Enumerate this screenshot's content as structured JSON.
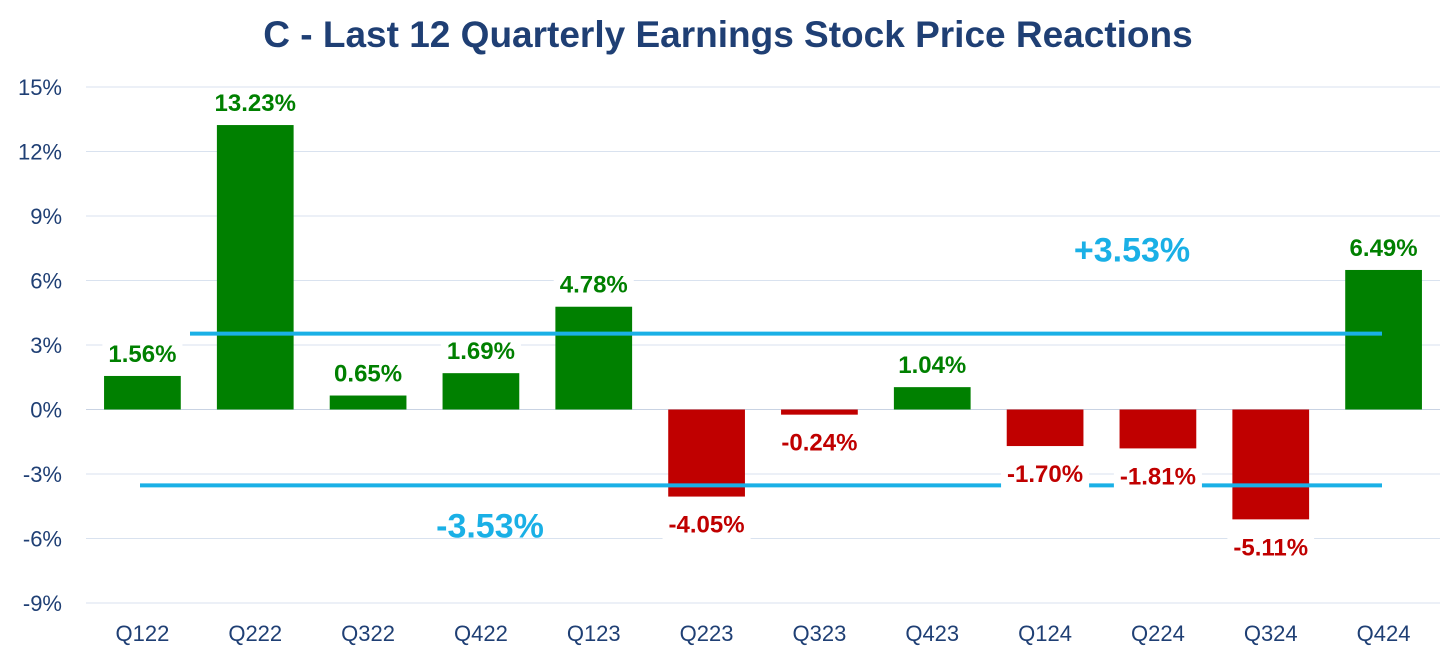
{
  "chart_data": {
    "type": "bar",
    "title": "C - Last 12 Quarterly Earnings Stock Price Reactions",
    "categories": [
      "Q122",
      "Q222",
      "Q322",
      "Q422",
      "Q123",
      "Q223",
      "Q323",
      "Q423",
      "Q124",
      "Q224",
      "Q324",
      "Q424"
    ],
    "values": [
      1.56,
      13.23,
      0.65,
      1.69,
      4.78,
      -4.05,
      -0.24,
      1.04,
      -1.7,
      -1.81,
      -5.11,
      6.49
    ],
    "data_labels": [
      "1.56%",
      "13.23%",
      "0.65%",
      "1.69%",
      "4.78%",
      "-4.05%",
      "-0.24%",
      "1.04%",
      "-1.70%",
      "-1.81%",
      "-5.11%",
      "6.49%"
    ],
    "ylim": [
      -9,
      15
    ],
    "yticks": [
      15,
      12,
      9,
      6,
      3,
      0,
      -3,
      -6,
      -9
    ],
    "ytick_labels": [
      "15%",
      "12%",
      "9%",
      "6%",
      "3%",
      "0%",
      "-3%",
      "-6%",
      "-9%"
    ],
    "xlabel": "",
    "ylabel": "",
    "grid": true,
    "reference_lines": [
      {
        "value": 3.53,
        "label": "+3.53%"
      },
      {
        "value": -3.53,
        "label": "-3.53%"
      }
    ],
    "colors": {
      "positive": "#008000",
      "negative": "#c00000",
      "reference": "#1ab0e6",
      "axis_text": "#1f3f74",
      "gridline": "#d9e2ef"
    }
  }
}
